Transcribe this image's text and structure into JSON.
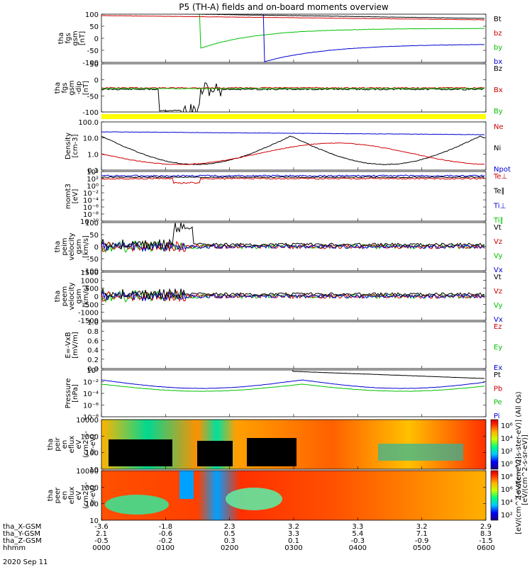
{
  "chart_data": {
    "type": "line",
    "title": "P5 (TH-A) fields and on-board moments overview",
    "date_label": "2020 Sep 11",
    "xaxis": {
      "hhmm_ticks": [
        "0000",
        "0100",
        "0200",
        "0300",
        "0400",
        "0500",
        "0600"
      ],
      "rows": [
        {
          "label": "tha_X-GSM",
          "values": [
            "-3.6",
            "-1.8",
            "2.3",
            "3.2",
            "3.3",
            "3.2",
            "2.9"
          ]
        },
        {
          "label": "tha_Y-GSM",
          "values": [
            "2.1",
            "-0.6",
            "0.5",
            "3.3",
            "5.4",
            "7.1",
            "8.3"
          ]
        },
        {
          "label": "tha_Z-GSM",
          "values": [
            "-0.5",
            "-0.2",
            "0.3",
            "0.1",
            "-0.3",
            "-0.9",
            "-1.5"
          ]
        },
        {
          "label": "hhmm",
          "values": [
            "0000",
            "0100",
            "0200",
            "0300",
            "0400",
            "0500",
            "0600"
          ]
        }
      ]
    },
    "panels": [
      {
        "id": "fgs",
        "ylabel": [
          "tha",
          "fgs",
          "gsm",
          "[nT]"
        ],
        "ylim": [
          -100,
          100
        ],
        "yticks": [
          "100",
          "50",
          "0",
          "-50",
          "-100"
        ],
        "legend": [
          {
            "name": "Bt",
            "color": "#000000"
          },
          {
            "name": "bz",
            "color": "#d00000"
          },
          {
            "name": "by",
            "color": "#00c000"
          },
          {
            "name": "bx",
            "color": "#0000d0"
          }
        ]
      },
      {
        "id": "fgs_dip",
        "ylabel": [
          "tha",
          "fgs",
          "gsm",
          "-dip",
          "[nT]"
        ],
        "ylim": [
          -120,
          60
        ],
        "yticks": [
          "50",
          "0",
          "-50",
          "-100"
        ],
        "legend": [
          {
            "name": "Bz",
            "color": "#000000"
          },
          {
            "name": "Bx",
            "color": "#d00000"
          },
          {
            "name": "By",
            "color": "#00c000"
          }
        ]
      },
      {
        "id": "density",
        "ylabel": [
          "Density",
          "[cm-3]"
        ],
        "log": true,
        "yticks": [
          "100.0",
          "10.0",
          "1.0",
          "0.1"
        ],
        "legend": [
          {
            "name": "Ne",
            "color": "#d00000"
          },
          {
            "name": "Ni",
            "color": "#000000"
          },
          {
            "name": "Npot",
            "color": "#0000d0"
          }
        ]
      },
      {
        "id": "temp",
        "ylabel": [
          "momt3",
          "[eV]"
        ],
        "log": true,
        "yticks": [
          "10⁴",
          "10²",
          "10⁰",
          "10⁻²",
          "10⁻⁴",
          "10⁻⁶",
          "10⁻⁸",
          "10⁻¹⁰"
        ],
        "legend": [
          {
            "name": "Te⊥",
            "color": "#d00000"
          },
          {
            "name": "Te∥",
            "color": "#000000"
          },
          {
            "name": "Ti⊥",
            "color": "#0000d0"
          },
          {
            "name": "Ti∥",
            "color": "#00c000"
          }
        ]
      },
      {
        "id": "peim",
        "ylabel": [
          "tha",
          "peim",
          "velocity",
          "gsm",
          "[km/s]"
        ],
        "ylim": [
          -100,
          100
        ],
        "yticks": [
          "100",
          "50",
          "0",
          "-50",
          "-100"
        ],
        "legend": [
          {
            "name": "Vt",
            "color": "#000000"
          },
          {
            "name": "Vz",
            "color": "#d00000"
          },
          {
            "name": "Vy",
            "color": "#00c000"
          },
          {
            "name": "Vx",
            "color": "#0000d0"
          }
        ]
      },
      {
        "id": "peem",
        "ylabel": [
          "tha",
          "peem",
          "velocity",
          "gsm",
          "[km/s]"
        ],
        "ylim": [
          -1500,
          1500
        ],
        "yticks": [
          "1500",
          "1000",
          "500",
          "0",
          "-500",
          "-1000",
          "-1500"
        ],
        "legend": [
          {
            "name": "Vt",
            "color": "#000000"
          },
          {
            "name": "Vz",
            "color": "#d00000"
          },
          {
            "name": "Vy",
            "color": "#00c000"
          },
          {
            "name": "Vx",
            "color": "#0000d0"
          }
        ]
      },
      {
        "id": "efield",
        "ylabel": [
          "E=-VxB",
          "[mV/m]"
        ],
        "ylim": [
          0,
          1
        ],
        "yticks": [
          "1.0",
          "0.8",
          "0.6",
          "0.4",
          "0.2",
          "0.0"
        ],
        "legend": [
          {
            "name": "Ez",
            "color": "#d00000"
          },
          {
            "name": "Ey",
            "color": "#00c000"
          },
          {
            "name": "Ex",
            "color": "#0000d0"
          }
        ]
      },
      {
        "id": "pressure",
        "ylabel": [
          "Pressure",
          "[nPa]"
        ],
        "log": true,
        "yticks": [
          "10⁰",
          "10⁻²",
          "10⁻⁴",
          "10⁻⁶",
          "10⁻⁸"
        ],
        "legend": [
          {
            "name": "Pt",
            "color": "#000000"
          },
          {
            "name": "Pb",
            "color": "#d00000"
          },
          {
            "name": "Pe",
            "color": "#00c000"
          },
          {
            "name": "Pi",
            "color": "#0000d0"
          }
        ]
      },
      {
        "id": "peir",
        "ylabel": [
          "tha",
          "peir",
          "en",
          "eflux",
          "eV",
          "(cm2-s-",
          "sr-eV)"
        ],
        "log": true,
        "yticks": [
          "10000",
          "1000",
          "100",
          "10"
        ]
      },
      {
        "id": "peer",
        "ylabel": [
          "tha",
          "peer",
          "en",
          "eflux",
          "eV",
          "(cm2-s-",
          "sr-eV)"
        ],
        "log": true,
        "yticks": [
          "10000",
          "1000",
          "100",
          "10"
        ]
      }
    ],
    "colorbar": {
      "upper_ticks": [
        "10⁶",
        "10⁴",
        "10²",
        "10⁰"
      ],
      "lower_ticks": [
        "10⁸",
        "10⁶",
        "10⁴",
        "10²"
      ],
      "label": "[eV/(cm^2-s-sr-eV)]",
      "upper_inner_label": "[eV/(cm^2-s-ster-eV)] (All Qs)",
      "lower_inner_label": "[eV/(cm^2-s-ster-eV)]"
    }
  }
}
